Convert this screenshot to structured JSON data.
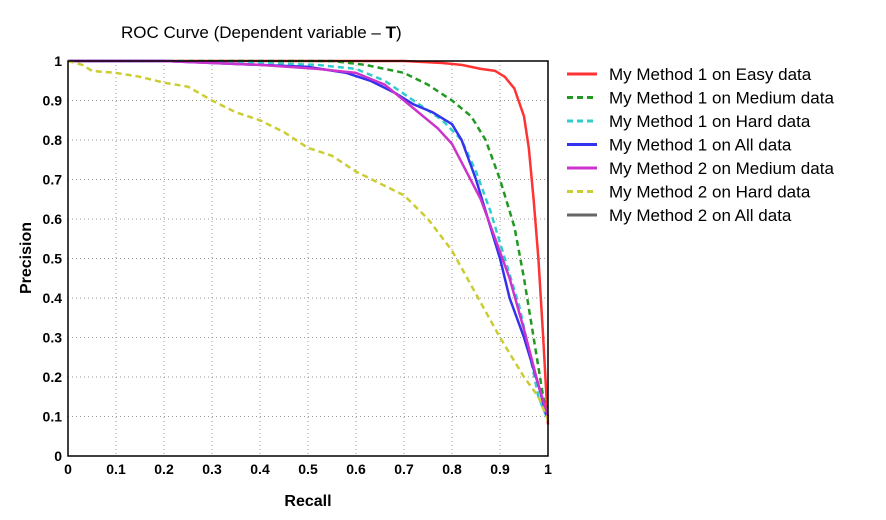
{
  "chart_data": {
    "type": "line",
    "title": {
      "prefix": "ROC Curve  (Dependent variable – ",
      "bold": "T",
      "suffix": ")"
    },
    "xlabel": "Recall",
    "ylabel": "Precision",
    "xlim": [
      0,
      1
    ],
    "ylim": [
      0,
      1
    ],
    "xticks": [
      "0",
      "0.1",
      "0.2",
      "0.3",
      "0.4",
      "0.5",
      "0.6",
      "0.7",
      "0.8",
      "0.9",
      "1"
    ],
    "yticks": [
      "0",
      "0.1",
      "0.2",
      "0.3",
      "0.4",
      "0.5",
      "0.6",
      "0.7",
      "0.8",
      "0.9",
      "1"
    ],
    "grid": true,
    "legend_position": "right",
    "series": [
      {
        "name": "My Method 1 on Easy data",
        "color": "#ff3333",
        "dash": "solid",
        "x": [
          0,
          0.2,
          0.4,
          0.6,
          0.7,
          0.78,
          0.82,
          0.86,
          0.89,
          0.91,
          0.93,
          0.95,
          0.96,
          0.97,
          0.98,
          0.99,
          1.0
        ],
        "y": [
          1.0,
          1.0,
          1.0,
          1.0,
          1.0,
          0.995,
          0.99,
          0.98,
          0.975,
          0.96,
          0.93,
          0.86,
          0.78,
          0.65,
          0.5,
          0.3,
          0.08
        ]
      },
      {
        "name": "My Method 1 on Medium data",
        "color": "#229922",
        "dash": "dashed",
        "x": [
          0,
          0.2,
          0.4,
          0.55,
          0.62,
          0.7,
          0.75,
          0.8,
          0.84,
          0.87,
          0.9,
          0.93,
          0.95,
          0.97,
          0.99,
          1.0
        ],
        "y": [
          1.0,
          1.0,
          1.0,
          1.0,
          0.99,
          0.97,
          0.94,
          0.9,
          0.86,
          0.8,
          0.7,
          0.58,
          0.45,
          0.3,
          0.15,
          0.1
        ]
      },
      {
        "name": "My Method 1 on Hard data",
        "color": "#33cccc",
        "dash": "dashed",
        "x": [
          0,
          0.2,
          0.4,
          0.52,
          0.6,
          0.66,
          0.72,
          0.78,
          0.82,
          0.85,
          0.88,
          0.91,
          0.94,
          0.96,
          0.98,
          1.0
        ],
        "y": [
          1.0,
          1.0,
          0.995,
          0.99,
          0.98,
          0.95,
          0.9,
          0.85,
          0.8,
          0.72,
          0.62,
          0.5,
          0.38,
          0.27,
          0.15,
          0.09
        ]
      },
      {
        "name": "My Method 1 on All data",
        "color": "#3333ee",
        "dash": "solid",
        "x": [
          0,
          0.2,
          0.4,
          0.5,
          0.58,
          0.63,
          0.68,
          0.72,
          0.76,
          0.8,
          0.82,
          0.85,
          0.87,
          0.9,
          0.92,
          0.95,
          0.98,
          1.0
        ],
        "y": [
          1.0,
          1.0,
          0.99,
          0.985,
          0.97,
          0.95,
          0.92,
          0.89,
          0.87,
          0.84,
          0.8,
          0.7,
          0.62,
          0.5,
          0.4,
          0.3,
          0.18,
          0.09
        ]
      },
      {
        "name": "My Method 2 on Medium data",
        "color": "#cc33cc",
        "dash": "solid",
        "x": [
          0,
          0.2,
          0.4,
          0.52,
          0.6,
          0.66,
          0.72,
          0.77,
          0.8,
          0.83,
          0.86,
          0.89,
          0.92,
          0.95,
          0.98,
          1.0
        ],
        "y": [
          1.0,
          1.0,
          0.99,
          0.98,
          0.97,
          0.94,
          0.88,
          0.83,
          0.79,
          0.72,
          0.65,
          0.55,
          0.45,
          0.32,
          0.18,
          0.1
        ]
      },
      {
        "name": "My Method 2 on Hard data",
        "color": "#cccc33",
        "dash": "dashed",
        "x": [
          0,
          0.03,
          0.05,
          0.1,
          0.15,
          0.2,
          0.25,
          0.3,
          0.35,
          0.4,
          0.45,
          0.5,
          0.55,
          0.6,
          0.65,
          0.7,
          0.75,
          0.8,
          0.85,
          0.9,
          0.95,
          0.98,
          1.0
        ],
        "y": [
          1.0,
          0.99,
          0.975,
          0.97,
          0.96,
          0.945,
          0.935,
          0.9,
          0.87,
          0.85,
          0.82,
          0.78,
          0.76,
          0.72,
          0.69,
          0.66,
          0.6,
          0.52,
          0.41,
          0.3,
          0.2,
          0.15,
          0.09
        ]
      },
      {
        "name": "My Method 2 on All data",
        "color": "#666666",
        "dash": "solid",
        "x": [],
        "y": []
      }
    ]
  }
}
